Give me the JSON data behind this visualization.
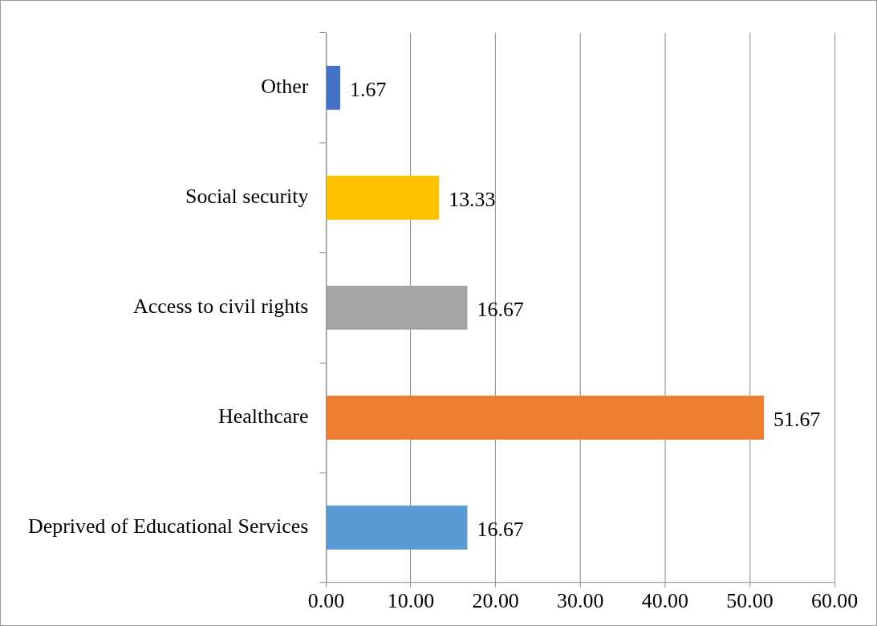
{
  "chart_data": {
    "type": "bar",
    "orientation": "horizontal",
    "categories": [
      "Other",
      "Social security",
      "Access to civil rights",
      "Healthcare",
      "Deprived of Educational Services"
    ],
    "values": [
      1.67,
      13.33,
      16.67,
      51.67,
      16.67
    ],
    "colors": [
      "#4472c4",
      "#ffc000",
      "#a5a5a5",
      "#ed7d31",
      "#5b9bd5"
    ],
    "xlim": [
      0,
      60
    ],
    "xticks": [
      {
        "value": 0,
        "label": "0.00"
      },
      {
        "value": 10,
        "label": "10.00"
      },
      {
        "value": 20,
        "label": "20.00"
      },
      {
        "value": 30,
        "label": "30.00"
      },
      {
        "value": 40,
        "label": "40.00"
      },
      {
        "value": 50,
        "label": "50.00"
      },
      {
        "value": 60,
        "label": "60.00"
      }
    ],
    "grid": "x",
    "data_labels": true,
    "legend": false
  }
}
